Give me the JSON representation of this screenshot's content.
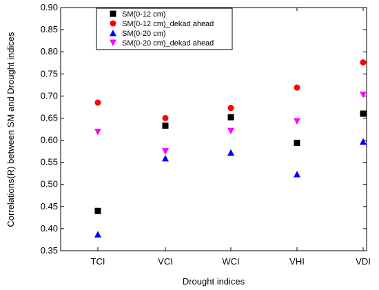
{
  "chart_data": {
    "type": "scatter",
    "title": "",
    "xlabel": "Drought indices",
    "ylabel": "Correlations(R) between SM and Drought indices",
    "categories": [
      "TCI",
      "VCI",
      "WCI",
      "VHI",
      "VDI"
    ],
    "ylim": [
      0.35,
      0.9
    ],
    "yticks": [
      "0.35",
      "0.40",
      "0.45",
      "0.50",
      "0.55",
      "0.60",
      "0.65",
      "0.70",
      "0.75",
      "0.80",
      "0.85",
      "0.90"
    ],
    "grid": false,
    "legend_position": "top-center",
    "series": [
      {
        "name": "SM(0-12 cm)",
        "marker": "square",
        "color": "#000000",
        "values": [
          0.44,
          0.633,
          0.652,
          0.594,
          0.66
        ]
      },
      {
        "name": "SM(0-12 cm)_dekad ahead",
        "marker": "circle",
        "color": "#ff0000",
        "values": [
          0.685,
          0.65,
          0.673,
          0.719,
          0.776
        ]
      },
      {
        "name": "SM(0-20 cm)",
        "marker": "triangle-up",
        "color": "#0000ff",
        "values": [
          0.387,
          0.559,
          0.572,
          0.523,
          0.597
        ]
      },
      {
        "name": "SM(0-20 cm)_dekad ahead",
        "marker": "triangle-down",
        "color": "#ff00ff",
        "values": [
          0.619,
          0.575,
          0.621,
          0.643,
          0.703
        ]
      }
    ]
  }
}
